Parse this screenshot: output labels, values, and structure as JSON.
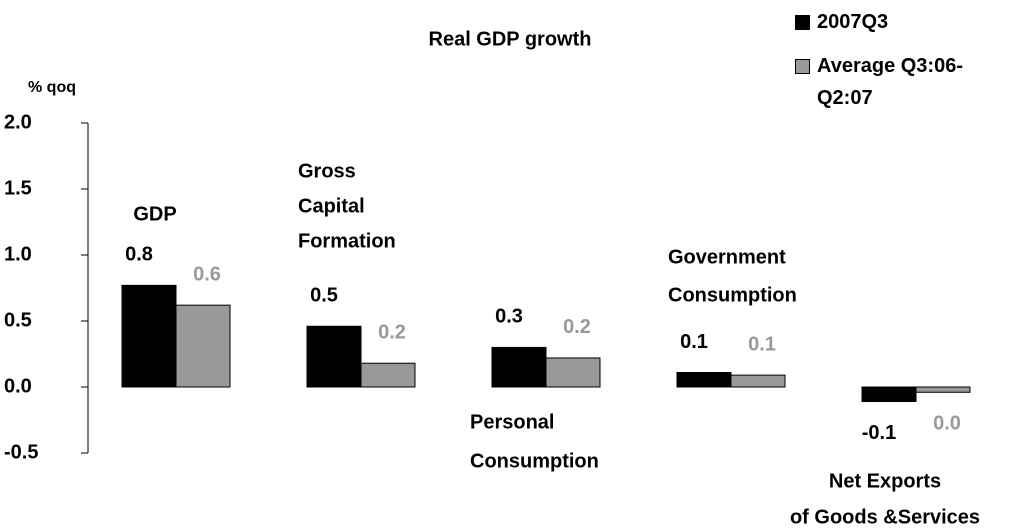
{
  "chart_data": {
    "type": "bar",
    "title": "Real GDP growth",
    "y_label": "% qoq",
    "categories": [
      [
        "GDP"
      ],
      [
        "Gross",
        "Capital",
        "Formation"
      ],
      [
        "Personal",
        "Consumption"
      ],
      [
        "Government",
        "Consumption"
      ],
      [
        "Net Exports",
        "of Goods &Services"
      ]
    ],
    "series": [
      {
        "name": "2007Q3",
        "color": "#000000",
        "values": [
          0.77,
          0.46,
          0.3,
          0.11,
          -0.11
        ],
        "value_labels": [
          "0.8",
          "0.5",
          "0.3",
          "0.1",
          "-0.1"
        ],
        "label_color": "#000000"
      },
      {
        "name": "Average Q3:06-Q2:07",
        "color": "#999999",
        "values": [
          0.62,
          0.18,
          0.22,
          0.09,
          -0.04
        ],
        "value_labels": [
          "0.6",
          "0.2",
          "0.2",
          "0.1",
          "0.0"
        ],
        "label_color": "#999999"
      }
    ],
    "ylim": [
      -0.5,
      2.0
    ],
    "yticks": [
      -0.5,
      {
        "value": 0,
        "label": "0.0"
      },
      0.5,
      {
        "value": 1,
        "label": "1.0"
      },
      1.5,
      {
        "value": 2,
        "label": "2.0"
      }
    ],
    "grid": false,
    "legend": "top-right"
  }
}
